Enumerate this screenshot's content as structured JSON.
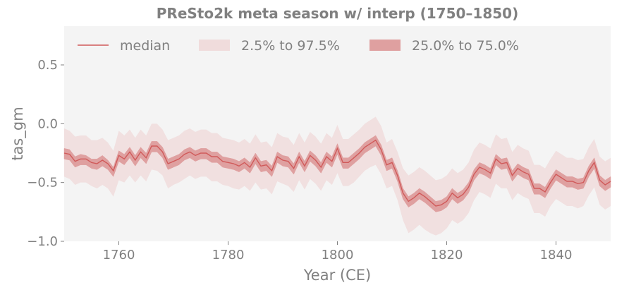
{
  "chart_data": {
    "type": "line",
    "title": "PReSto2k meta season w/ interp (1750–1850)",
    "xlabel": "Year (CE)",
    "ylabel": "tas_gm",
    "xlim": [
      1750,
      1850
    ],
    "ylim": [
      -1.0,
      0.83
    ],
    "x_ticks": [
      1760,
      1780,
      1800,
      1820,
      1840
    ],
    "x_tick_labels": [
      "1760",
      "1780",
      "1800",
      "1820",
      "1840"
    ],
    "y_ticks": [
      0.5,
      0.0,
      -0.5,
      -1.0
    ],
    "y_tick_labels": [
      "0.5",
      "0.0",
      "−0.5",
      "−1.0"
    ],
    "grid": false,
    "legend_position": "top",
    "colors": {
      "median": "#d05a5a",
      "band_outer": "#f0dcdc",
      "band_inner": "#dfa0a0",
      "plot_background": "#f4f4f4",
      "text": "#808080"
    },
    "legend": [
      {
        "label": "median",
        "kind": "line"
      },
      {
        "label": "2.5% to 97.5%",
        "kind": "band_outer"
      },
      {
        "label": "25.0% to 75.0%",
        "kind": "band_inner"
      }
    ],
    "x": [
      1750,
      1751,
      1752,
      1753,
      1754,
      1755,
      1756,
      1757,
      1758,
      1759,
      1760,
      1761,
      1762,
      1763,
      1764,
      1765,
      1766,
      1767,
      1768,
      1769,
      1770,
      1771,
      1772,
      1773,
      1774,
      1775,
      1776,
      1777,
      1778,
      1779,
      1780,
      1781,
      1782,
      1783,
      1784,
      1785,
      1786,
      1787,
      1788,
      1789,
      1790,
      1791,
      1792,
      1793,
      1794,
      1795,
      1796,
      1797,
      1798,
      1799,
      1800,
      1801,
      1802,
      1803,
      1804,
      1805,
      1806,
      1807,
      1808,
      1809,
      1810,
      1811,
      1812,
      1813,
      1814,
      1815,
      1816,
      1817,
      1818,
      1819,
      1820,
      1821,
      1822,
      1823,
      1824,
      1825,
      1826,
      1827,
      1828,
      1829,
      1830,
      1831,
      1832,
      1833,
      1834,
      1835,
      1836,
      1837,
      1838,
      1839,
      1840,
      1841,
      1842,
      1843,
      1844,
      1845,
      1846,
      1847,
      1848,
      1849,
      1850
    ],
    "median": [
      -0.25,
      -0.26,
      -0.32,
      -0.3,
      -0.3,
      -0.33,
      -0.34,
      -0.31,
      -0.34,
      -0.4,
      -0.27,
      -0.3,
      -0.24,
      -0.31,
      -0.24,
      -0.29,
      -0.19,
      -0.19,
      -0.24,
      -0.34,
      -0.32,
      -0.3,
      -0.26,
      -0.24,
      -0.27,
      -0.25,
      -0.25,
      -0.28,
      -0.28,
      -0.32,
      -0.33,
      -0.34,
      -0.36,
      -0.33,
      -0.37,
      -0.29,
      -0.36,
      -0.35,
      -0.4,
      -0.28,
      -0.31,
      -0.32,
      -0.38,
      -0.28,
      -0.36,
      -0.27,
      -0.31,
      -0.37,
      -0.28,
      -0.32,
      -0.21,
      -0.33,
      -0.33,
      -0.29,
      -0.25,
      -0.2,
      -0.17,
      -0.14,
      -0.22,
      -0.35,
      -0.33,
      -0.44,
      -0.59,
      -0.66,
      -0.63,
      -0.59,
      -0.62,
      -0.66,
      -0.7,
      -0.69,
      -0.66,
      -0.59,
      -0.63,
      -0.6,
      -0.54,
      -0.43,
      -0.37,
      -0.39,
      -0.42,
      -0.3,
      -0.34,
      -0.33,
      -0.44,
      -0.38,
      -0.41,
      -0.43,
      -0.55,
      -0.55,
      -0.58,
      -0.5,
      -0.43,
      -0.46,
      -0.49,
      -0.49,
      -0.51,
      -0.5,
      -0.4,
      -0.33,
      -0.48,
      -0.52,
      -0.49
    ],
    "q25": [
      -0.21,
      -0.22,
      -0.28,
      -0.26,
      -0.27,
      -0.3,
      -0.3,
      -0.27,
      -0.31,
      -0.37,
      -0.23,
      -0.26,
      -0.2,
      -0.27,
      -0.2,
      -0.25,
      -0.15,
      -0.15,
      -0.2,
      -0.3,
      -0.28,
      -0.26,
      -0.22,
      -0.2,
      -0.23,
      -0.21,
      -0.21,
      -0.24,
      -0.24,
      -0.28,
      -0.29,
      -0.3,
      -0.32,
      -0.29,
      -0.33,
      -0.25,
      -0.32,
      -0.31,
      -0.36,
      -0.24,
      -0.27,
      -0.28,
      -0.34,
      -0.24,
      -0.32,
      -0.23,
      -0.27,
      -0.33,
      -0.24,
      -0.28,
      -0.17,
      -0.29,
      -0.29,
      -0.25,
      -0.21,
      -0.16,
      -0.13,
      -0.1,
      -0.18,
      -0.31,
      -0.29,
      -0.4,
      -0.55,
      -0.62,
      -0.59,
      -0.55,
      -0.58,
      -0.62,
      -0.66,
      -0.65,
      -0.62,
      -0.55,
      -0.59,
      -0.56,
      -0.5,
      -0.39,
      -0.33,
      -0.35,
      -0.38,
      -0.26,
      -0.3,
      -0.29,
      -0.4,
      -0.34,
      -0.37,
      -0.39,
      -0.51,
      -0.51,
      -0.54,
      -0.46,
      -0.39,
      -0.42,
      -0.45,
      -0.45,
      -0.47,
      -0.46,
      -0.36,
      -0.29,
      -0.44,
      -0.48,
      -0.45
    ],
    "q75": [
      -0.3,
      -0.31,
      -0.37,
      -0.35,
      -0.35,
      -0.38,
      -0.39,
      -0.36,
      -0.39,
      -0.45,
      -0.32,
      -0.35,
      -0.29,
      -0.36,
      -0.29,
      -0.34,
      -0.24,
      -0.24,
      -0.29,
      -0.39,
      -0.37,
      -0.35,
      -0.31,
      -0.29,
      -0.32,
      -0.3,
      -0.3,
      -0.33,
      -0.33,
      -0.37,
      -0.38,
      -0.39,
      -0.41,
      -0.38,
      -0.42,
      -0.34,
      -0.41,
      -0.4,
      -0.45,
      -0.33,
      -0.36,
      -0.37,
      -0.43,
      -0.33,
      -0.41,
      -0.32,
      -0.36,
      -0.42,
      -0.33,
      -0.37,
      -0.26,
      -0.38,
      -0.38,
      -0.34,
      -0.3,
      -0.25,
      -0.22,
      -0.19,
      -0.27,
      -0.4,
      -0.38,
      -0.49,
      -0.64,
      -0.71,
      -0.68,
      -0.64,
      -0.67,
      -0.71,
      -0.75,
      -0.74,
      -0.71,
      -0.64,
      -0.68,
      -0.65,
      -0.59,
      -0.48,
      -0.42,
      -0.44,
      -0.47,
      -0.35,
      -0.39,
      -0.38,
      -0.49,
      -0.43,
      -0.46,
      -0.48,
      -0.6,
      -0.6,
      -0.63,
      -0.55,
      -0.48,
      -0.51,
      -0.54,
      -0.54,
      -0.56,
      -0.55,
      -0.45,
      -0.38,
      -0.53,
      -0.57,
      -0.54
    ],
    "q2_5": [
      -0.04,
      -0.06,
      -0.11,
      -0.1,
      -0.1,
      -0.14,
      -0.14,
      -0.12,
      -0.16,
      -0.23,
      -0.06,
      -0.1,
      -0.05,
      -0.12,
      -0.05,
      -0.1,
      0.0,
      0.0,
      -0.05,
      -0.14,
      -0.12,
      -0.1,
      -0.06,
      -0.04,
      -0.07,
      -0.05,
      -0.05,
      -0.08,
      -0.08,
      -0.12,
      -0.13,
      -0.14,
      -0.16,
      -0.13,
      -0.17,
      -0.09,
      -0.16,
      -0.15,
      -0.2,
      -0.08,
      -0.11,
      -0.12,
      -0.18,
      -0.08,
      -0.16,
      -0.07,
      -0.11,
      -0.17,
      -0.08,
      -0.12,
      -0.01,
      -0.13,
      -0.13,
      -0.09,
      -0.05,
      0.0,
      0.03,
      0.06,
      -0.02,
      -0.16,
      -0.13,
      -0.24,
      -0.38,
      -0.44,
      -0.41,
      -0.37,
      -0.4,
      -0.44,
      -0.48,
      -0.47,
      -0.44,
      -0.38,
      -0.42,
      -0.39,
      -0.33,
      -0.22,
      -0.16,
      -0.18,
      -0.21,
      -0.09,
      -0.13,
      -0.12,
      -0.24,
      -0.18,
      -0.21,
      -0.23,
      -0.35,
      -0.35,
      -0.38,
      -0.3,
      -0.23,
      -0.26,
      -0.29,
      -0.29,
      -0.31,
      -0.3,
      -0.2,
      -0.13,
      -0.28,
      -0.32,
      -0.29
    ],
    "q97_5": [
      -0.45,
      -0.47,
      -0.52,
      -0.5,
      -0.5,
      -0.53,
      -0.55,
      -0.52,
      -0.55,
      -0.62,
      -0.48,
      -0.5,
      -0.44,
      -0.5,
      -0.44,
      -0.49,
      -0.39,
      -0.4,
      -0.44,
      -0.55,
      -0.52,
      -0.5,
      -0.47,
      -0.44,
      -0.47,
      -0.45,
      -0.45,
      -0.49,
      -0.49,
      -0.52,
      -0.53,
      -0.55,
      -0.56,
      -0.53,
      -0.57,
      -0.5,
      -0.56,
      -0.55,
      -0.6,
      -0.49,
      -0.51,
      -0.53,
      -0.58,
      -0.48,
      -0.56,
      -0.47,
      -0.51,
      -0.57,
      -0.48,
      -0.52,
      -0.42,
      -0.53,
      -0.53,
      -0.5,
      -0.45,
      -0.4,
      -0.37,
      -0.35,
      -0.43,
      -0.55,
      -0.53,
      -0.65,
      -0.82,
      -0.93,
      -0.9,
      -0.86,
      -0.9,
      -0.93,
      -0.95,
      -0.93,
      -0.89,
      -0.82,
      -0.85,
      -0.82,
      -0.76,
      -0.65,
      -0.58,
      -0.6,
      -0.63,
      -0.51,
      -0.55,
      -0.55,
      -0.65,
      -0.59,
      -0.62,
      -0.64,
      -0.76,
      -0.76,
      -0.79,
      -0.7,
      -0.64,
      -0.67,
      -0.7,
      -0.7,
      -0.72,
      -0.7,
      -0.61,
      -0.54,
      -0.69,
      -0.73,
      -0.7
    ]
  }
}
